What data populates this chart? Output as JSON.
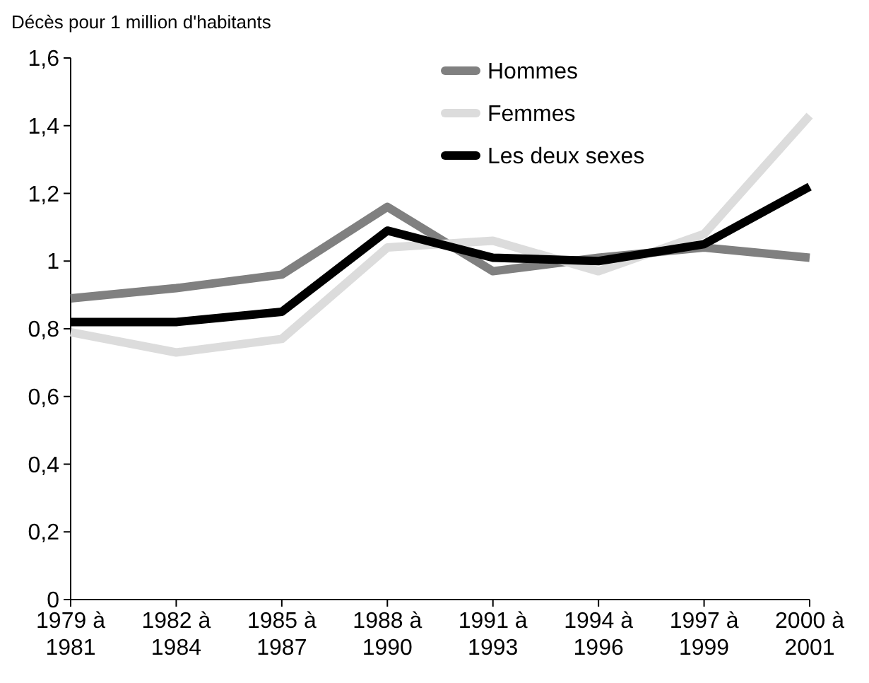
{
  "chart_data": {
    "type": "line",
    "ylabel": "Décès pour 1 million d'habitants",
    "categories": [
      "1979 à 1981",
      "1982 à 1984",
      "1985 à 1987",
      "1988 à 1990",
      "1991 à 1993",
      "1994 à 1996",
      "1997 à 1999",
      "2000 à 2001"
    ],
    "series": [
      {
        "name": "Hommes",
        "color": "#808080",
        "values": [
          0.89,
          0.92,
          0.96,
          1.16,
          0.97,
          1.01,
          1.04,
          1.01
        ]
      },
      {
        "name": "Femmes",
        "color": "#dcdcdc",
        "values": [
          0.79,
          0.73,
          0.77,
          1.04,
          1.06,
          0.97,
          1.08,
          1.43
        ]
      },
      {
        "name": "Les deux sexes",
        "color": "#000000",
        "values": [
          0.82,
          0.82,
          0.85,
          1.09,
          1.01,
          1.0,
          1.05,
          1.22
        ]
      }
    ],
    "ylim": [
      0,
      1.6
    ],
    "yticks": [
      0,
      {
        "value": 0.2,
        "label": "0,2"
      },
      {
        "value": 0.4,
        "label": "0,4"
      },
      {
        "value": 0.6,
        "label": "0,6"
      },
      {
        "value": 0.8,
        "label": "0,8"
      },
      1,
      {
        "value": 1.2,
        "label": "1,2"
      },
      {
        "value": 1.4,
        "label": "1,4"
      },
      {
        "value": 1.6,
        "label": "1,6"
      }
    ],
    "legend": "top right",
    "grid": false,
    "marker": "none",
    "line_style": "solid"
  }
}
